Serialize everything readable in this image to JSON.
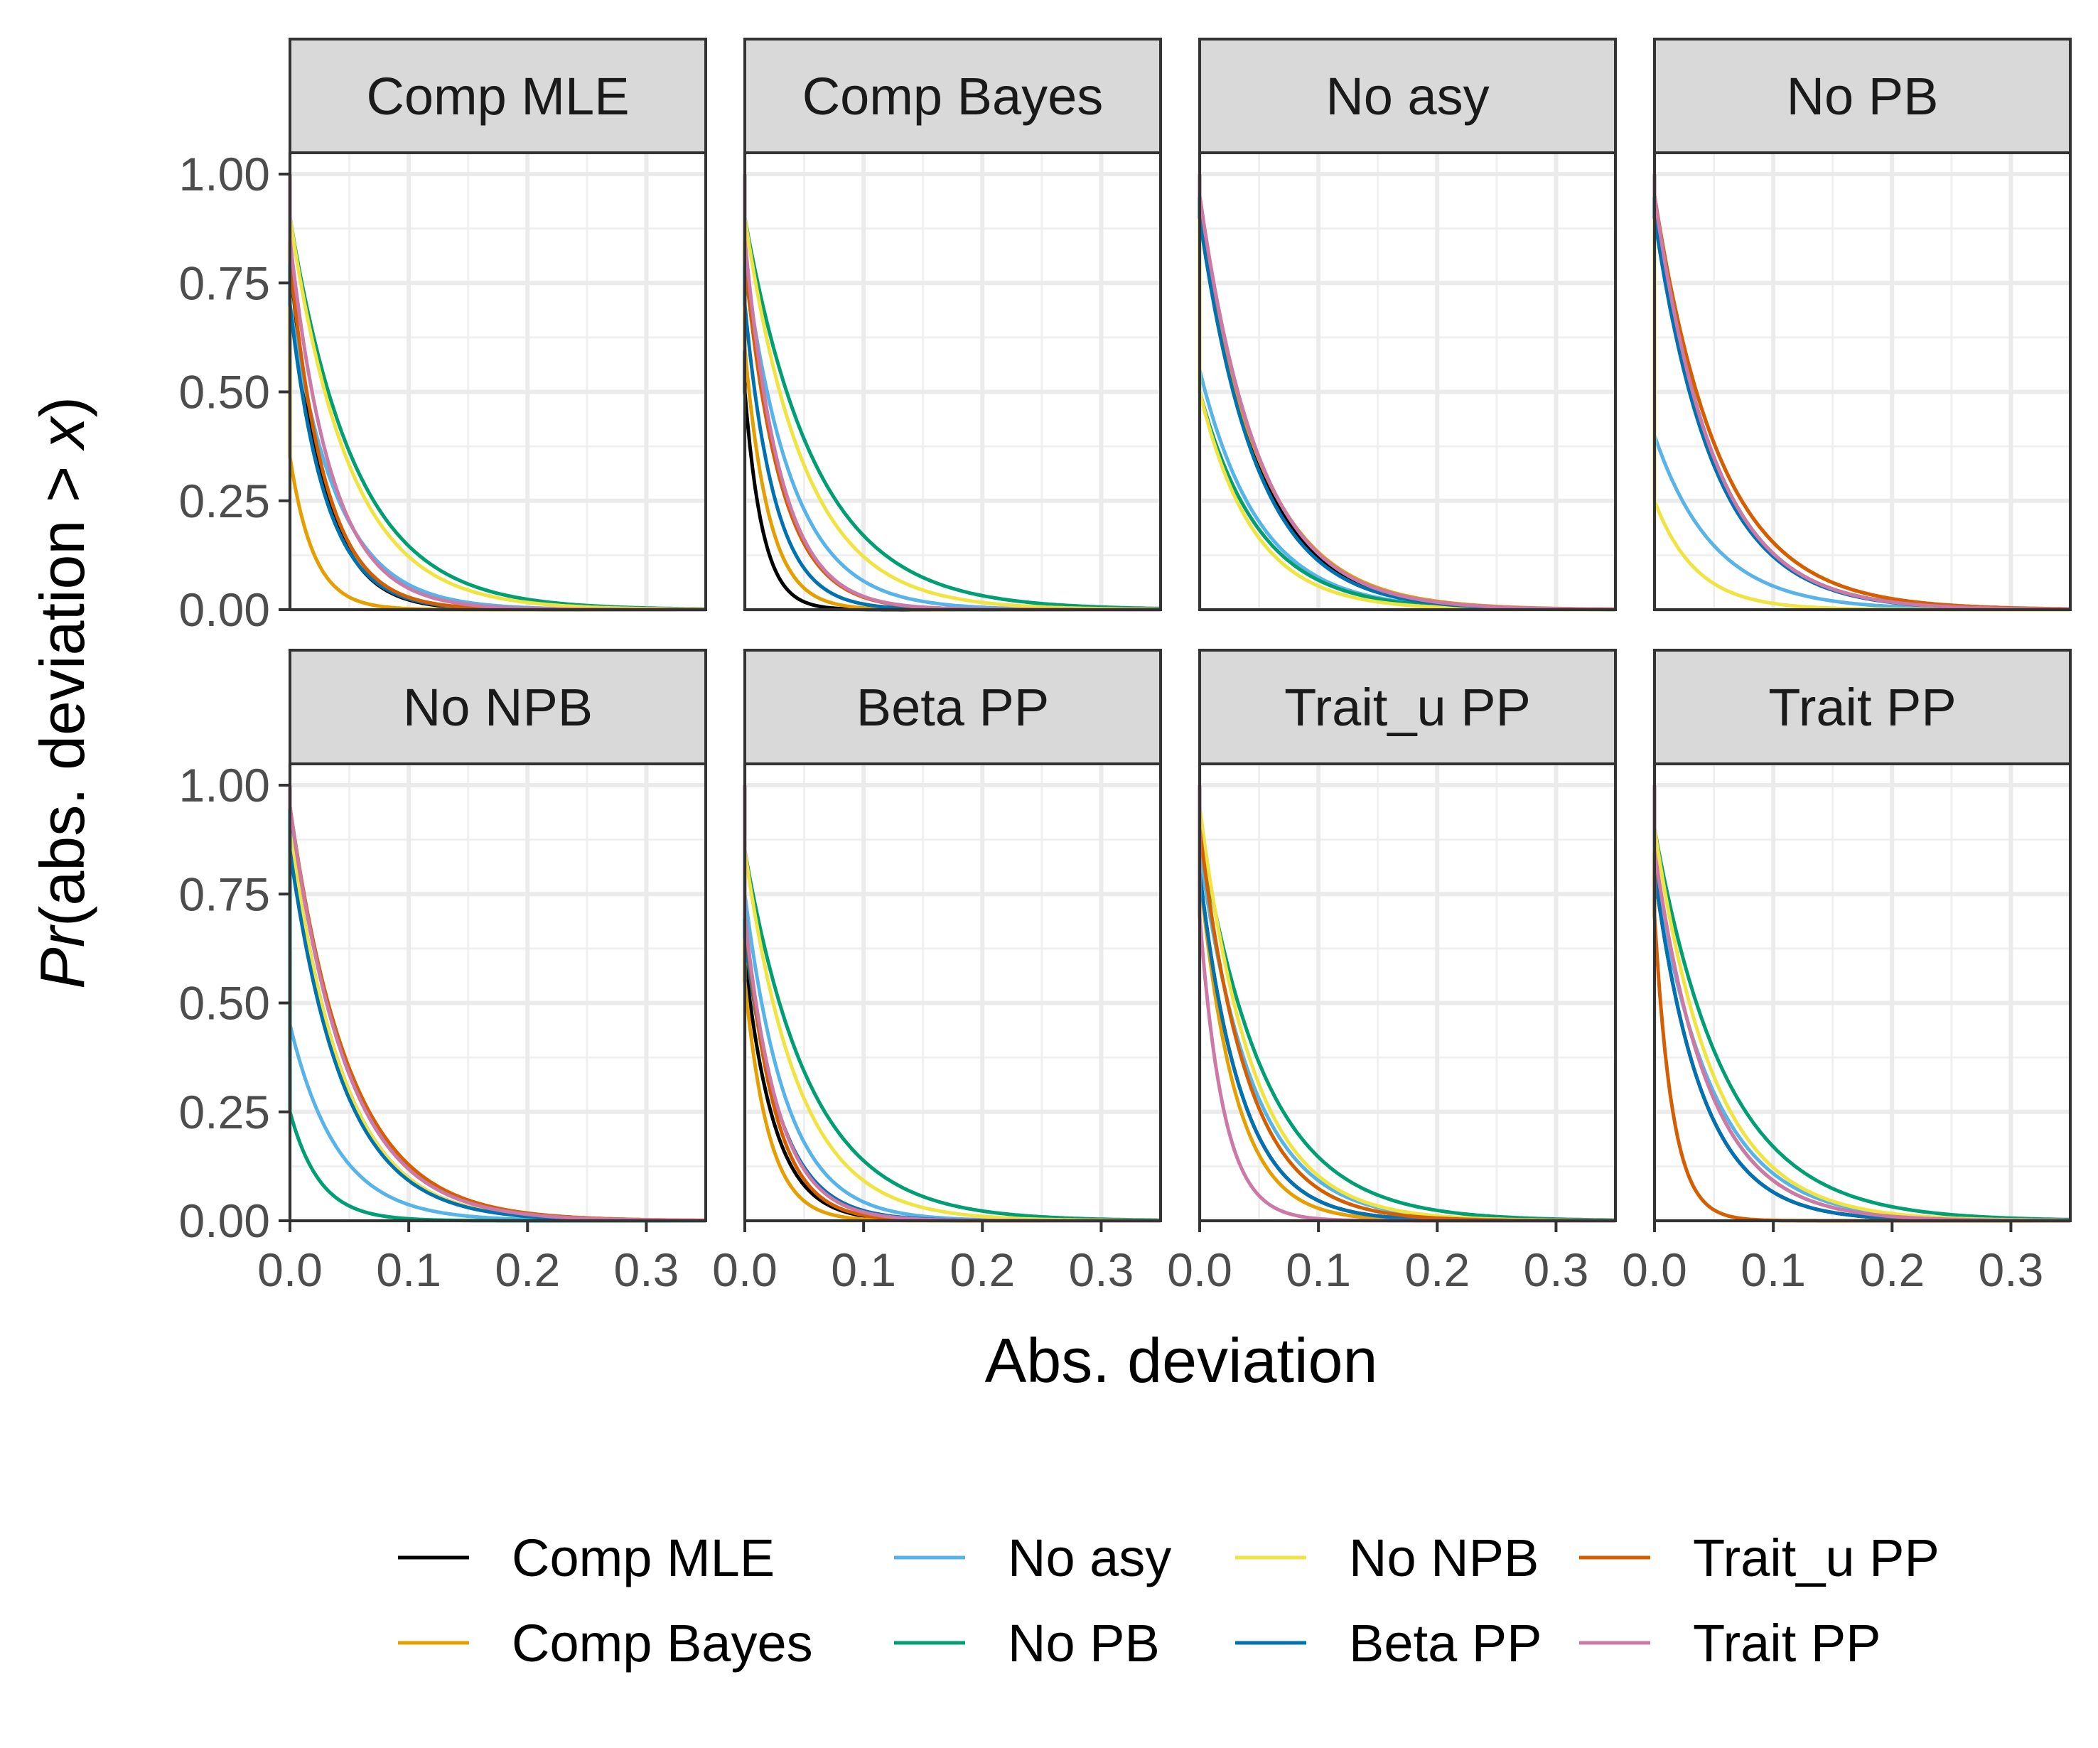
{
  "chart_data": {
    "type": "line",
    "layout": "facets 2x4",
    "xlabel": "Abs. deviation",
    "ylabel_parts": [
      "Pr",
      "(abs. deviation > ",
      "x",
      ")"
    ],
    "xlim": [
      0,
      0.35
    ],
    "ylim": [
      0,
      1
    ],
    "x_ticks": [
      "0.0",
      "0.1",
      "0.2",
      "0.3"
    ],
    "y_ticks": [
      "0.00",
      "0.25",
      "0.50",
      "0.75",
      "1.00"
    ],
    "grid": true,
    "legend_position": "bottom",
    "legend": [
      {
        "name": "Comp MLE",
        "color": "#000000"
      },
      {
        "name": "Comp Bayes",
        "color": "#E69F00"
      },
      {
        "name": "No asy",
        "color": "#56B4E9"
      },
      {
        "name": "No PB",
        "color": "#009E73"
      },
      {
        "name": "No NPB",
        "color": "#F0E442"
      },
      {
        "name": "Beta PP",
        "color": "#0072B2"
      },
      {
        "name": "Trait_u PP",
        "color": "#D55E00"
      },
      {
        "name": "Trait PP",
        "color": "#CC79A7"
      }
    ],
    "curve_model": "Pr(abs. deviation > x) ≈ y0 · exp(-x / scale)",
    "panels": [
      {
        "title": "Comp MLE",
        "series": [
          {
            "name": "Comp MLE",
            "y0": 0.8,
            "scale": 0.028
          },
          {
            "name": "Comp Bayes",
            "y0": 0.35,
            "scale": 0.02
          },
          {
            "name": "No asy",
            "y0": 0.7,
            "scale": 0.04
          },
          {
            "name": "No PB",
            "y0": 0.9,
            "scale": 0.055
          },
          {
            "name": "No NPB",
            "y0": 0.9,
            "scale": 0.05
          },
          {
            "name": "Beta PP",
            "y0": 0.7,
            "scale": 0.03
          },
          {
            "name": "Trait_u PP",
            "y0": 0.8,
            "scale": 0.03
          },
          {
            "name": "Trait PP",
            "y0": 0.85,
            "scale": 0.035
          }
        ]
      },
      {
        "title": "Comp Bayes",
        "series": [
          {
            "name": "Comp MLE",
            "y0": 0.5,
            "scale": 0.015
          },
          {
            "name": "Comp Bayes",
            "y0": 0.6,
            "scale": 0.02
          },
          {
            "name": "No asy",
            "y0": 0.8,
            "scale": 0.04
          },
          {
            "name": "No PB",
            "y0": 0.9,
            "scale": 0.06
          },
          {
            "name": "No NPB",
            "y0": 0.9,
            "scale": 0.05
          },
          {
            "name": "Beta PP",
            "y0": 0.7,
            "scale": 0.025
          },
          {
            "name": "Trait_u PP",
            "y0": 0.8,
            "scale": 0.03
          },
          {
            "name": "Trait PP",
            "y0": 0.85,
            "scale": 0.03
          }
        ]
      },
      {
        "title": "No asy",
        "series": [
          {
            "name": "Comp MLE",
            "y0": 0.9,
            "scale": 0.05
          },
          {
            "name": "Comp Bayes",
            "y0": 0.9,
            "scale": 0.052
          },
          {
            "name": "No asy",
            "y0": 0.55,
            "scale": 0.05
          },
          {
            "name": "No PB",
            "y0": 0.5,
            "scale": 0.05
          },
          {
            "name": "No NPB",
            "y0": 0.5,
            "scale": 0.045
          },
          {
            "name": "Beta PP",
            "y0": 0.9,
            "scale": 0.048
          },
          {
            "name": "Trait_u PP",
            "y0": 0.95,
            "scale": 0.05
          },
          {
            "name": "Trait PP",
            "y0": 0.95,
            "scale": 0.05
          }
        ]
      },
      {
        "title": "No PB",
        "series": [
          {
            "name": "Comp MLE",
            "y0": 0.95,
            "scale": 0.05
          },
          {
            "name": "Comp Bayes",
            "y0": 0.95,
            "scale": 0.055
          },
          {
            "name": "No asy",
            "y0": 0.4,
            "scale": 0.05
          },
          {
            "name": "No PB",
            "y0": 0.95,
            "scale": 0.05
          },
          {
            "name": "No NPB",
            "y0": 0.25,
            "scale": 0.035
          },
          {
            "name": "Beta PP",
            "y0": 0.9,
            "scale": 0.05
          },
          {
            "name": "Trait_u PP",
            "y0": 0.95,
            "scale": 0.055
          },
          {
            "name": "Trait PP",
            "y0": 0.95,
            "scale": 0.05
          }
        ]
      },
      {
        "title": "No NPB",
        "series": [
          {
            "name": "Comp MLE",
            "y0": 0.9,
            "scale": 0.045
          },
          {
            "name": "Comp Bayes",
            "y0": 0.95,
            "scale": 0.05
          },
          {
            "name": "No asy",
            "y0": 0.45,
            "scale": 0.04
          },
          {
            "name": "No PB",
            "y0": 0.25,
            "scale": 0.025
          },
          {
            "name": "No NPB",
            "y0": 0.9,
            "scale": 0.045
          },
          {
            "name": "Beta PP",
            "y0": 0.85,
            "scale": 0.045
          },
          {
            "name": "Trait_u PP",
            "y0": 0.95,
            "scale": 0.05
          },
          {
            "name": "Trait PP",
            "y0": 0.95,
            "scale": 0.048
          }
        ]
      },
      {
        "title": "Beta PP",
        "series": [
          {
            "name": "Comp MLE",
            "y0": 0.6,
            "scale": 0.025
          },
          {
            "name": "Comp Bayes",
            "y0": 0.55,
            "scale": 0.02
          },
          {
            "name": "No asy",
            "y0": 0.75,
            "scale": 0.035
          },
          {
            "name": "No PB",
            "y0": 0.85,
            "scale": 0.055
          },
          {
            "name": "No NPB",
            "y0": 0.85,
            "scale": 0.045
          },
          {
            "name": "Beta PP",
            "y0": 0.65,
            "scale": 0.03
          },
          {
            "name": "Trait_u PP",
            "y0": 0.7,
            "scale": 0.025
          },
          {
            "name": "Trait PP",
            "y0": 0.7,
            "scale": 0.028
          }
        ]
      },
      {
        "title": "Trait_u PP",
        "series": [
          {
            "name": "Comp MLE",
            "y0": 0.8,
            "scale": 0.035
          },
          {
            "name": "Comp Bayes",
            "y0": 0.8,
            "scale": 0.03
          },
          {
            "name": "No asy",
            "y0": 0.85,
            "scale": 0.045
          },
          {
            "name": "No PB",
            "y0": 0.9,
            "scale": 0.055
          },
          {
            "name": "No NPB",
            "y0": 0.95,
            "scale": 0.045
          },
          {
            "name": "Beta PP",
            "y0": 0.8,
            "scale": 0.035
          },
          {
            "name": "Trait_u PP",
            "y0": 0.9,
            "scale": 0.04
          },
          {
            "name": "Trait PP",
            "y0": 0.7,
            "scale": 0.02
          }
        ]
      },
      {
        "title": "Trait PP",
        "series": [
          {
            "name": "Comp MLE",
            "y0": 0.8,
            "scale": 0.04
          },
          {
            "name": "Comp Bayes",
            "y0": 0.85,
            "scale": 0.045
          },
          {
            "name": "No asy",
            "y0": 0.8,
            "scale": 0.05
          },
          {
            "name": "No PB",
            "y0": 0.9,
            "scale": 0.06
          },
          {
            "name": "No NPB",
            "y0": 0.9,
            "scale": 0.05
          },
          {
            "name": "Beta PP",
            "y0": 0.8,
            "scale": 0.04
          },
          {
            "name": "Trait_u PP",
            "y0": 0.7,
            "scale": 0.015
          },
          {
            "name": "Trait PP",
            "y0": 0.85,
            "scale": 0.045
          }
        ]
      }
    ]
  }
}
